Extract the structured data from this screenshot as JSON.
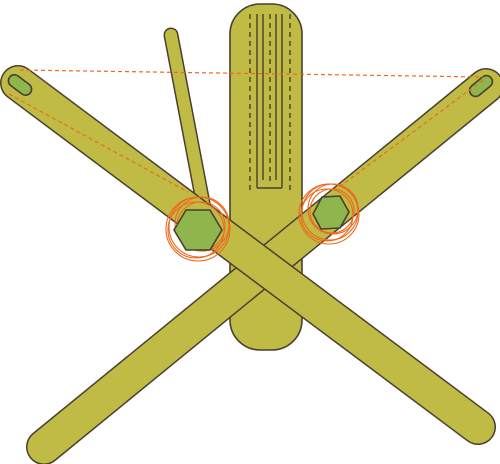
{
  "colors": {
    "bar_fill": "#bfbb45",
    "bar_outline": "#4a3f30",
    "inner_green": "#8fb54d",
    "slot_dashes": "#4a3f30",
    "guide_lines": "#ee6a1e",
    "background": "#ffffff"
  },
  "parts": {
    "bars": [
      "vertical-board",
      "thin-rod",
      "diagonal-bar-left-to-right",
      "diagonal-bar-right-to-left"
    ],
    "hex_pivots": 2,
    "end_slots": 2,
    "rotation_guides": 2
  }
}
